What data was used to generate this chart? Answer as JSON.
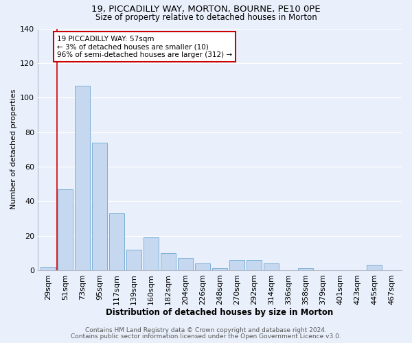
{
  "title": "19, PICCADILLY WAY, MORTON, BOURNE, PE10 0PE",
  "subtitle": "Size of property relative to detached houses in Morton",
  "xlabel": "Distribution of detached houses by size in Morton",
  "ylabel": "Number of detached properties",
  "footer_line1": "Contains HM Land Registry data © Crown copyright and database right 2024.",
  "footer_line2": "Contains public sector information licensed under the Open Government Licence v3.0.",
  "bar_labels": [
    "29sqm",
    "51sqm",
    "73sqm",
    "95sqm",
    "117sqm",
    "139sqm",
    "160sqm",
    "182sqm",
    "204sqm",
    "226sqm",
    "248sqm",
    "270sqm",
    "292sqm",
    "314sqm",
    "336sqm",
    "358sqm",
    "379sqm",
    "401sqm",
    "423sqm",
    "445sqm",
    "467sqm"
  ],
  "bar_values": [
    2,
    47,
    107,
    74,
    33,
    12,
    19,
    10,
    7,
    4,
    1,
    6,
    6,
    4,
    0,
    1,
    0,
    0,
    0,
    3,
    0
  ],
  "bar_color": "#c5d8f0",
  "bar_edge_color": "#7bafd4",
  "background_color": "#eaf0fb",
  "grid_color": "#ffffff",
  "vline_x": 0.5,
  "vline_color": "#cc0000",
  "annotation_text": "19 PICCADILLY WAY: 57sqm\n← 3% of detached houses are smaller (10)\n96% of semi-detached houses are larger (312) →",
  "annotation_box_color": "#ffffff",
  "annotation_box_edge_color": "#cc0000",
  "ylim": [
    0,
    140
  ],
  "yticks": [
    0,
    20,
    40,
    60,
    80,
    100,
    120,
    140
  ],
  "title_fontsize": 9.5,
  "subtitle_fontsize": 8.5,
  "xlabel_fontsize": 8.5,
  "ylabel_fontsize": 8,
  "tick_fontsize": 8,
  "footer_fontsize": 6.5,
  "annotation_fontsize": 7.5
}
